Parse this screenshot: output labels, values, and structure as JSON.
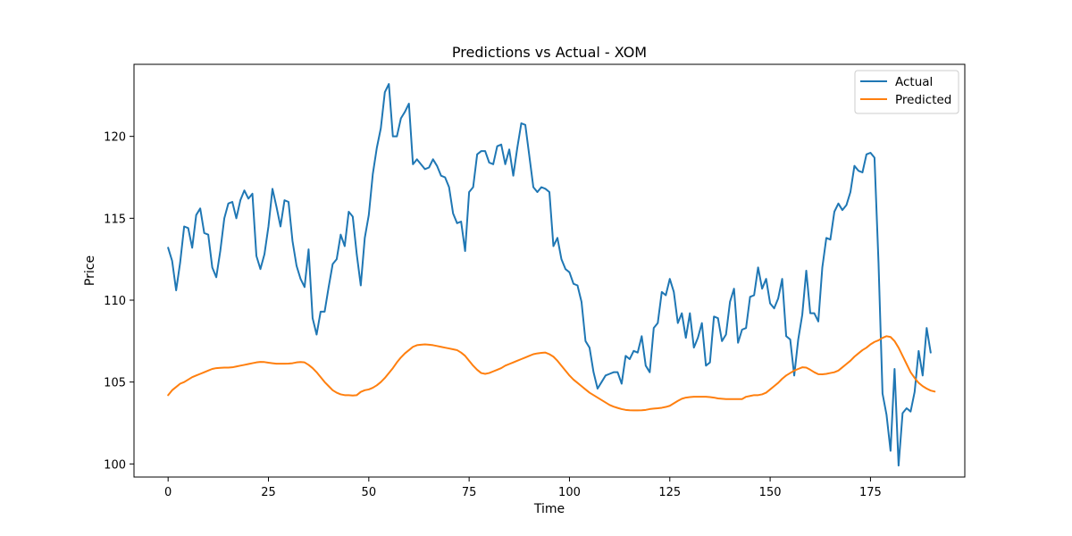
{
  "chart_data": {
    "type": "line",
    "title": "Predictions vs Actual - XOM",
    "xlabel": "Time",
    "ylabel": "Price",
    "xlim": [
      -8.5,
      198.5
    ],
    "ylim": [
      99.2,
      124.4
    ],
    "xticks": [
      0,
      25,
      50,
      75,
      100,
      125,
      150,
      175
    ],
    "yticks": [
      100,
      105,
      110,
      115,
      120
    ],
    "grid": false,
    "legend_position": "top-right",
    "series": [
      {
        "name": "Actual",
        "color": "#1f77b4",
        "values": [
          113.2,
          112.4,
          110.6,
          112.3,
          114.5,
          114.4,
          113.2,
          115.2,
          115.6,
          114.1,
          114.0,
          112.0,
          111.4,
          113.0,
          115.0,
          115.9,
          116.0,
          115.0,
          116.1,
          116.7,
          116.2,
          116.5,
          112.7,
          111.9,
          112.8,
          114.5,
          116.8,
          115.7,
          114.5,
          116.1,
          116.0,
          113.6,
          112.1,
          111.3,
          110.8,
          113.1,
          108.9,
          107.9,
          109.3,
          109.3,
          110.8,
          112.2,
          112.5,
          114.0,
          113.3,
          115.4,
          115.1,
          112.8,
          110.9,
          113.8,
          115.2,
          117.7,
          119.3,
          120.5,
          122.7,
          123.2,
          120.0,
          120.0,
          121.1,
          121.5,
          122.0,
          118.3,
          118.6,
          118.3,
          118.0,
          118.1,
          118.6,
          118.2,
          117.6,
          117.5,
          116.9,
          115.3,
          114.7,
          114.8,
          113.0,
          116.6,
          116.9,
          118.9,
          119.1,
          119.1,
          118.4,
          118.3,
          119.4,
          119.5,
          118.3,
          119.2,
          117.6,
          119.3,
          120.8,
          120.7,
          118.8,
          116.9,
          116.6,
          116.9,
          116.8,
          116.6,
          113.3,
          113.8,
          112.5,
          111.9,
          111.7,
          111.0,
          110.9,
          109.9,
          107.5,
          107.1,
          105.6,
          104.6,
          105.0,
          105.4,
          105.5,
          105.6,
          105.6,
          104.9,
          106.6,
          106.4,
          106.9,
          106.8,
          107.8,
          106.0,
          105.6,
          108.3,
          108.6,
          110.5,
          110.3,
          111.3,
          110.5,
          108.6,
          109.2,
          107.7,
          109.2,
          107.1,
          107.7,
          108.6,
          106.0,
          106.2,
          109.0,
          108.9,
          107.5,
          107.9,
          109.9,
          110.7,
          107.4,
          108.2,
          108.3,
          110.2,
          110.3,
          112.0,
          110.7,
          111.3,
          109.8,
          109.5,
          110.1,
          111.3,
          107.8,
          107.6,
          105.4,
          107.6,
          109.1,
          111.8,
          109.2,
          109.2,
          108.7,
          112.0,
          113.8,
          113.7,
          115.4,
          115.9,
          115.5,
          115.8,
          116.6,
          118.2,
          117.9,
          117.8,
          118.9,
          119.0,
          118.7,
          112.3,
          104.3,
          103.0,
          100.8,
          105.8,
          99.9,
          103.1,
          103.4,
          103.2,
          104.4,
          106.9,
          105.4,
          108.3,
          106.8
        ]
      },
      {
        "name": "Predicted",
        "color": "#ff7f0e",
        "values": [
          104.2,
          104.5,
          104.7,
          104.9,
          105.0,
          105.15,
          105.3,
          105.4,
          105.5,
          105.6,
          105.7,
          105.8,
          105.85,
          105.87,
          105.88,
          105.88,
          105.9,
          105.95,
          106.0,
          106.05,
          106.1,
          106.15,
          106.2,
          106.23,
          106.22,
          106.18,
          106.15,
          106.12,
          106.12,
          106.12,
          106.13,
          106.15,
          106.2,
          106.22,
          106.2,
          106.05,
          105.85,
          105.6,
          105.3,
          105.0,
          104.75,
          104.5,
          104.35,
          104.25,
          104.2,
          104.2,
          104.18,
          104.2,
          104.4,
          104.5,
          104.55,
          104.65,
          104.8,
          105.0,
          105.25,
          105.55,
          105.85,
          106.2,
          106.5,
          106.75,
          106.95,
          107.15,
          107.25,
          107.28,
          107.3,
          107.28,
          107.25,
          107.2,
          107.15,
          107.1,
          107.05,
          107.0,
          106.95,
          106.8,
          106.6,
          106.3,
          106.0,
          105.75,
          105.55,
          105.5,
          105.55,
          105.65,
          105.75,
          105.85,
          106.0,
          106.1,
          106.2,
          106.3,
          106.4,
          106.5,
          106.6,
          106.7,
          106.75,
          106.78,
          106.8,
          106.7,
          106.55,
          106.3,
          106.0,
          105.7,
          105.4,
          105.15,
          104.95,
          104.75,
          104.55,
          104.35,
          104.2,
          104.05,
          103.9,
          103.75,
          103.6,
          103.5,
          103.42,
          103.35,
          103.3,
          103.28,
          103.27,
          103.27,
          103.28,
          103.3,
          103.35,
          103.38,
          103.4,
          103.43,
          103.48,
          103.55,
          103.7,
          103.85,
          103.98,
          104.05,
          104.08,
          104.1,
          104.1,
          104.1,
          104.1,
          104.08,
          104.05,
          104.0,
          103.98,
          103.96,
          103.96,
          103.96,
          103.96,
          103.96,
          104.1,
          104.15,
          104.2,
          104.2,
          104.25,
          104.35,
          104.55,
          104.75,
          104.95,
          105.2,
          105.4,
          105.55,
          105.7,
          105.8,
          105.9,
          105.88,
          105.75,
          105.6,
          105.48,
          105.47,
          105.5,
          105.55,
          105.6,
          105.7,
          105.9,
          106.1,
          106.3,
          106.55,
          106.75,
          106.95,
          107.1,
          107.3,
          107.45,
          107.55,
          107.7,
          107.8,
          107.75,
          107.5,
          107.1,
          106.6,
          106.1,
          105.6,
          105.25,
          104.95,
          104.75,
          104.6,
          104.48,
          104.42
        ]
      }
    ]
  }
}
